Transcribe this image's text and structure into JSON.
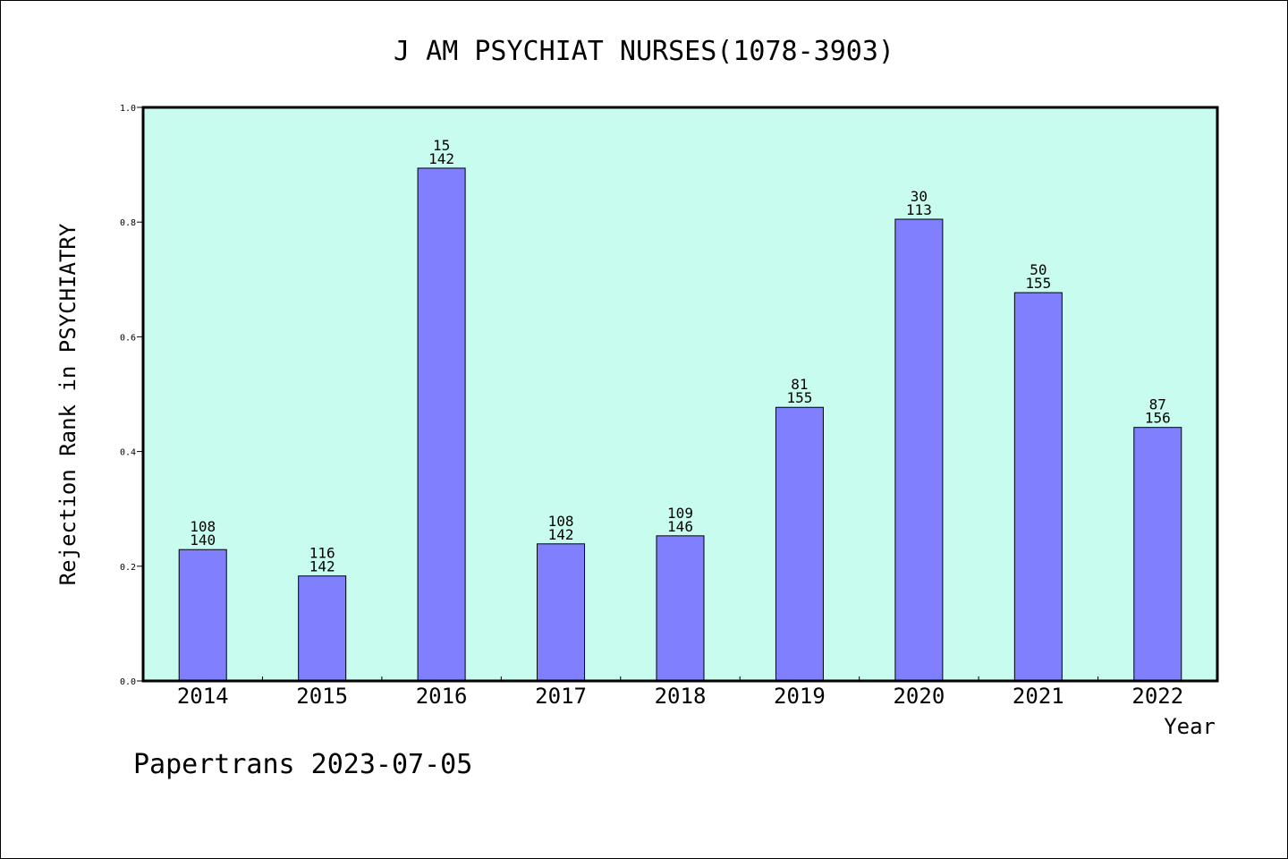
{
  "chart_data": {
    "type": "bar",
    "title": "J AM PSYCHIAT NURSES(1078-3903)",
    "xlabel": "Year",
    "ylabel": "Rejection Rank in PSYCHIATRY",
    "ylim": [
      0,
      1.0
    ],
    "yticks": [
      "0.0",
      "0.2",
      "0.4",
      "0.6",
      "0.8",
      "1.0"
    ],
    "categories": [
      "2014",
      "2015",
      "2016",
      "2017",
      "2018",
      "2019",
      "2020",
      "2021",
      "2022"
    ],
    "values": [
      0.229,
      0.183,
      0.894,
      0.239,
      0.253,
      0.477,
      0.805,
      0.677,
      0.442
    ],
    "labels_top": [
      "108",
      "116",
      "15",
      "108",
      "109",
      "81",
      "30",
      "50",
      "87"
    ],
    "labels_bottom": [
      "140",
      "142",
      "142",
      "142",
      "146",
      "155",
      "113",
      "155",
      "156"
    ],
    "grid": false,
    "colors": {
      "plot_bg": "#c8fcee",
      "bar": "#8080ff",
      "bar_edge": "#000000"
    }
  },
  "footer": "Papertrans 2023-07-05"
}
